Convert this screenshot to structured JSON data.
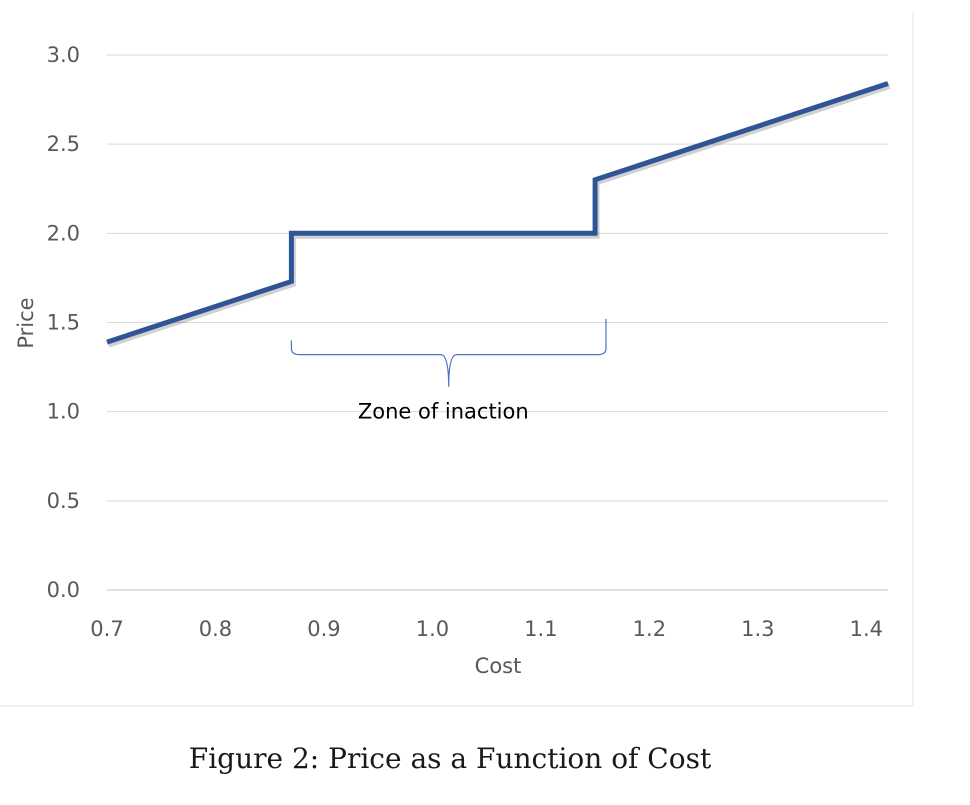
{
  "chart_data": {
    "type": "line",
    "title": "",
    "xlabel": "Cost",
    "ylabel": "Price",
    "xlim": [
      0.7,
      1.42
    ],
    "ylim": [
      0.0,
      3.0
    ],
    "xticks": [
      "0.7",
      "0.8",
      "0.9",
      "1.0",
      "1.1",
      "1.2",
      "1.3",
      "1.4"
    ],
    "yticks": [
      "0.0",
      "0.5",
      "1.0",
      "1.5",
      "2.0",
      "2.5",
      "3.0"
    ],
    "grid": "horizontal",
    "legend": "none",
    "series": [
      {
        "color": "#2f5597",
        "x": [
          0.7,
          0.87,
          0.87,
          1.15,
          1.15,
          1.42
        ],
        "y": [
          1.39,
          1.73,
          2.0,
          2.0,
          2.3,
          2.84
        ]
      }
    ],
    "annotations": [
      {
        "text": "Zone of inaction",
        "type": "brace",
        "x_start": 0.87,
        "x_end": 1.16,
        "y": 1.32,
        "text_x": 1.01,
        "text_y": 1.0
      }
    ]
  },
  "caption": "Figure 2: Price as a Function of Cost"
}
